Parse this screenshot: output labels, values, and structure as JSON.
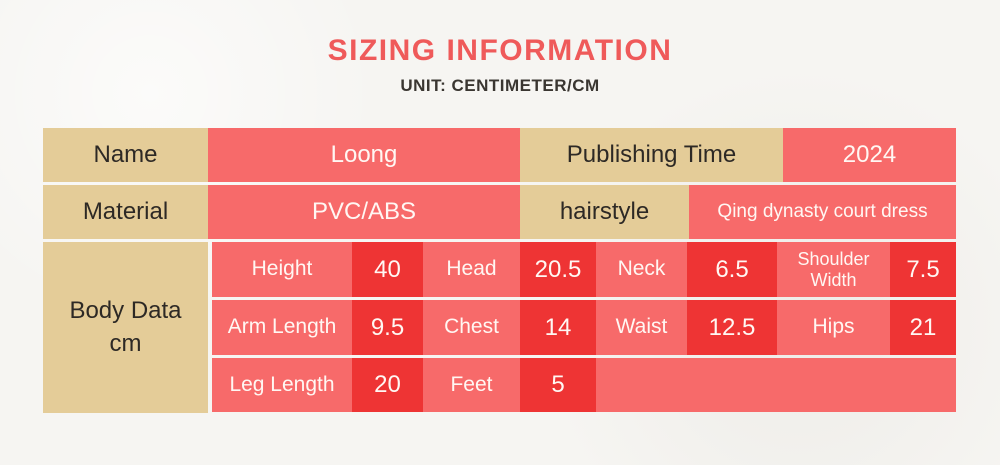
{
  "page": {
    "title": "SIZING INFORMATION",
    "subtitle": "UNIT: CENTIMETER/CM"
  },
  "colors": {
    "title_red": "#ef5a5a",
    "cell_tan": "#e4cc98",
    "cell_salmon": "#f76a6a",
    "cell_dark_red": "#ee3434",
    "text_dark": "#2d2925",
    "text_light": "#fff7f3",
    "page_bg": "#f6f5f2"
  },
  "table": {
    "row1": {
      "name_label": "Name",
      "name_value": "Loong",
      "time_label": "Publishing Time",
      "time_value": "2024"
    },
    "row2": {
      "material_label": "Material",
      "material_value": "PVC/ABS",
      "hairstyle_label": "hairstyle",
      "hairstyle_value": "Qing dynasty court dress"
    },
    "body": {
      "header_line1": "Body Data",
      "header_line2": "cm",
      "unit": "cm",
      "rows": [
        {
          "cells": [
            {
              "label": "Height",
              "value": "40"
            },
            {
              "label": "Head",
              "value": "20.5"
            },
            {
              "label": "Neck",
              "value": "6.5"
            },
            {
              "label": "Shoulder Width",
              "value": "7.5"
            }
          ]
        },
        {
          "cells": [
            {
              "label": "Arm Length",
              "value": "9.5"
            },
            {
              "label": "Chest",
              "value": "14"
            },
            {
              "label": "Waist",
              "value": "12.5"
            },
            {
              "label": "Hips",
              "value": "21"
            }
          ]
        },
        {
          "cells": [
            {
              "label": "Leg Length",
              "value": "20"
            },
            {
              "label": "Feet",
              "value": "5"
            }
          ]
        }
      ]
    }
  }
}
